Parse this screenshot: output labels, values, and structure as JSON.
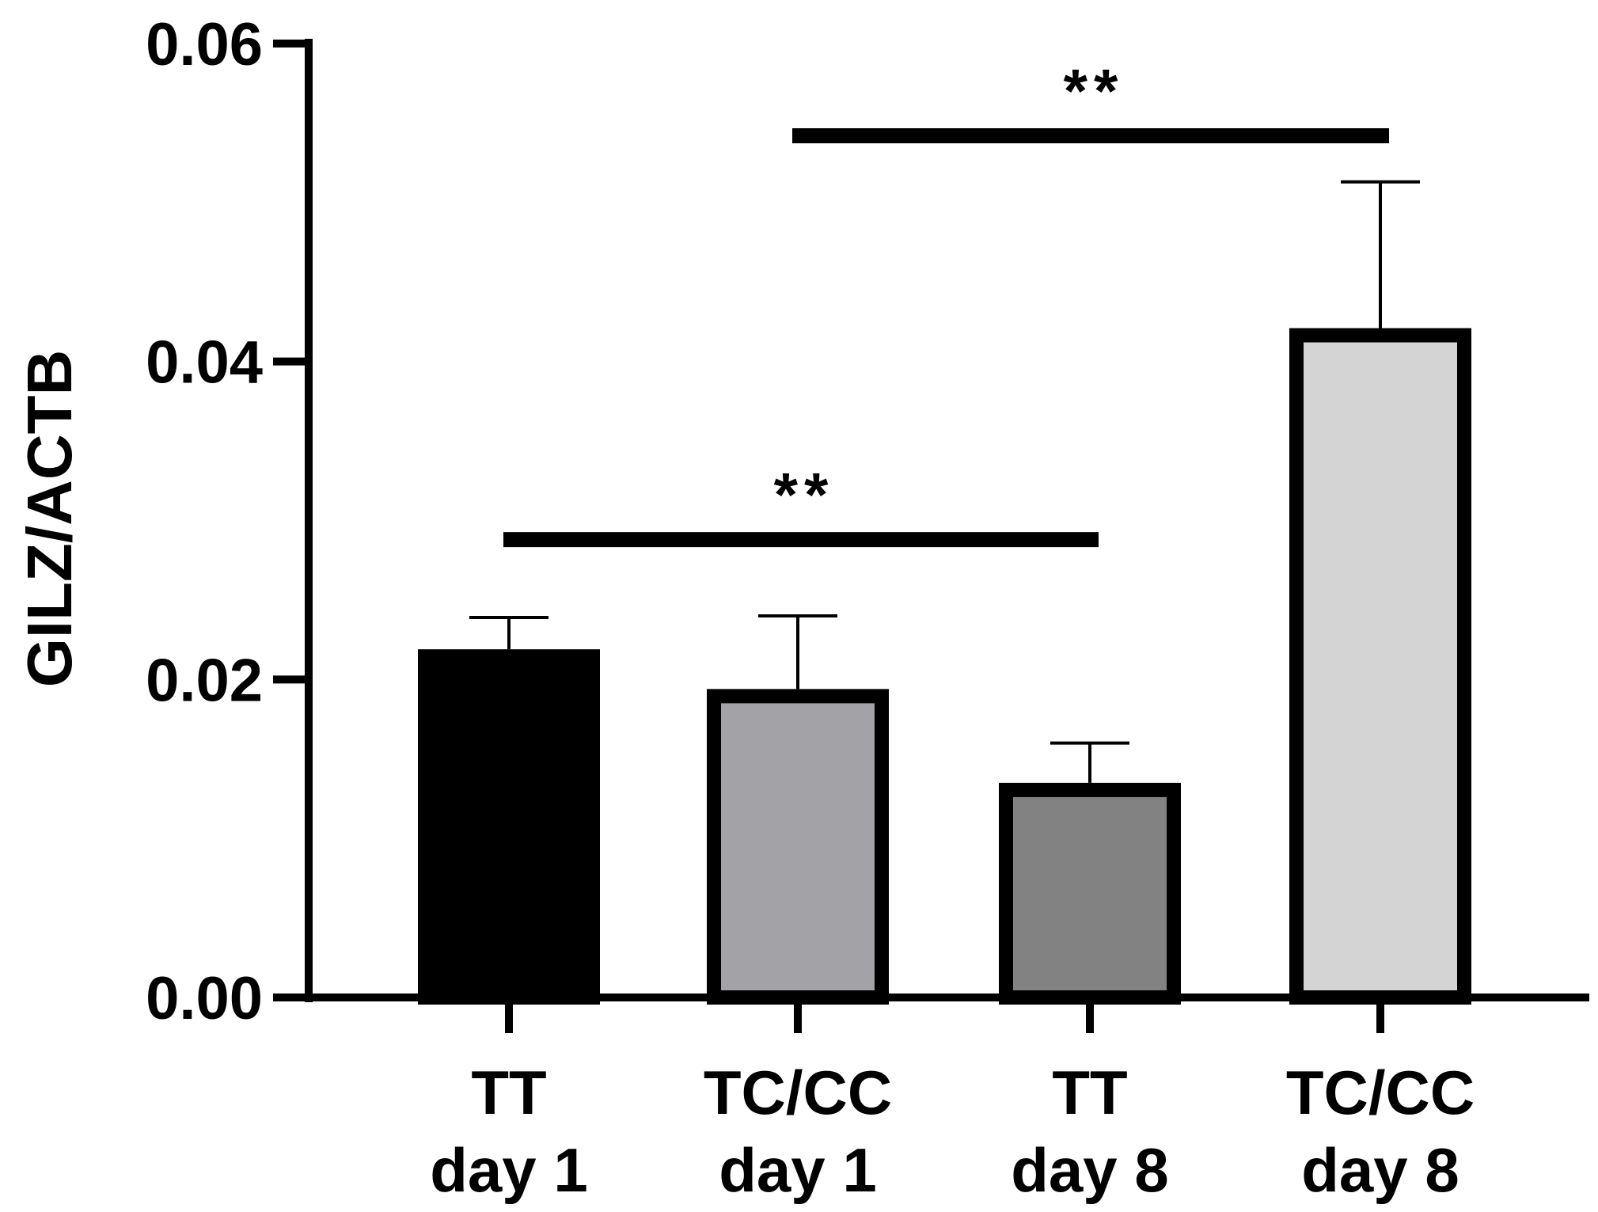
{
  "chart_data": {
    "type": "bar",
    "title": "",
    "xlabel": "",
    "ylabel": "GILZ/ACTB",
    "ylim": [
      0,
      0.06
    ],
    "yticks": [
      "0.00",
      "0.02",
      "0.04",
      "0.06"
    ],
    "ytick_values": [
      0,
      0.02,
      0.04,
      0.06
    ],
    "categories": [
      {
        "line1": "TT",
        "line2": "day 1"
      },
      {
        "line1": "TC/CC",
        "line2": "day 1"
      },
      {
        "line1": "TT",
        "line2": "day 8"
      },
      {
        "line1": "TC/CC",
        "line2": "day 8"
      }
    ],
    "values": [
      0.0219,
      0.0194,
      0.0135,
      0.0421
    ],
    "error_upper": [
      0.0239,
      0.024,
      0.016,
      0.0513
    ],
    "colors": [
      "#000000",
      "#a3a2a6",
      "#828282",
      "#d4d4d4"
    ],
    "significance": [
      {
        "from": 0,
        "to": 2,
        "level": 0.0288,
        "label": "**"
      },
      {
        "from": 1,
        "to": 3,
        "level": 0.0542,
        "label": "**"
      }
    ]
  }
}
